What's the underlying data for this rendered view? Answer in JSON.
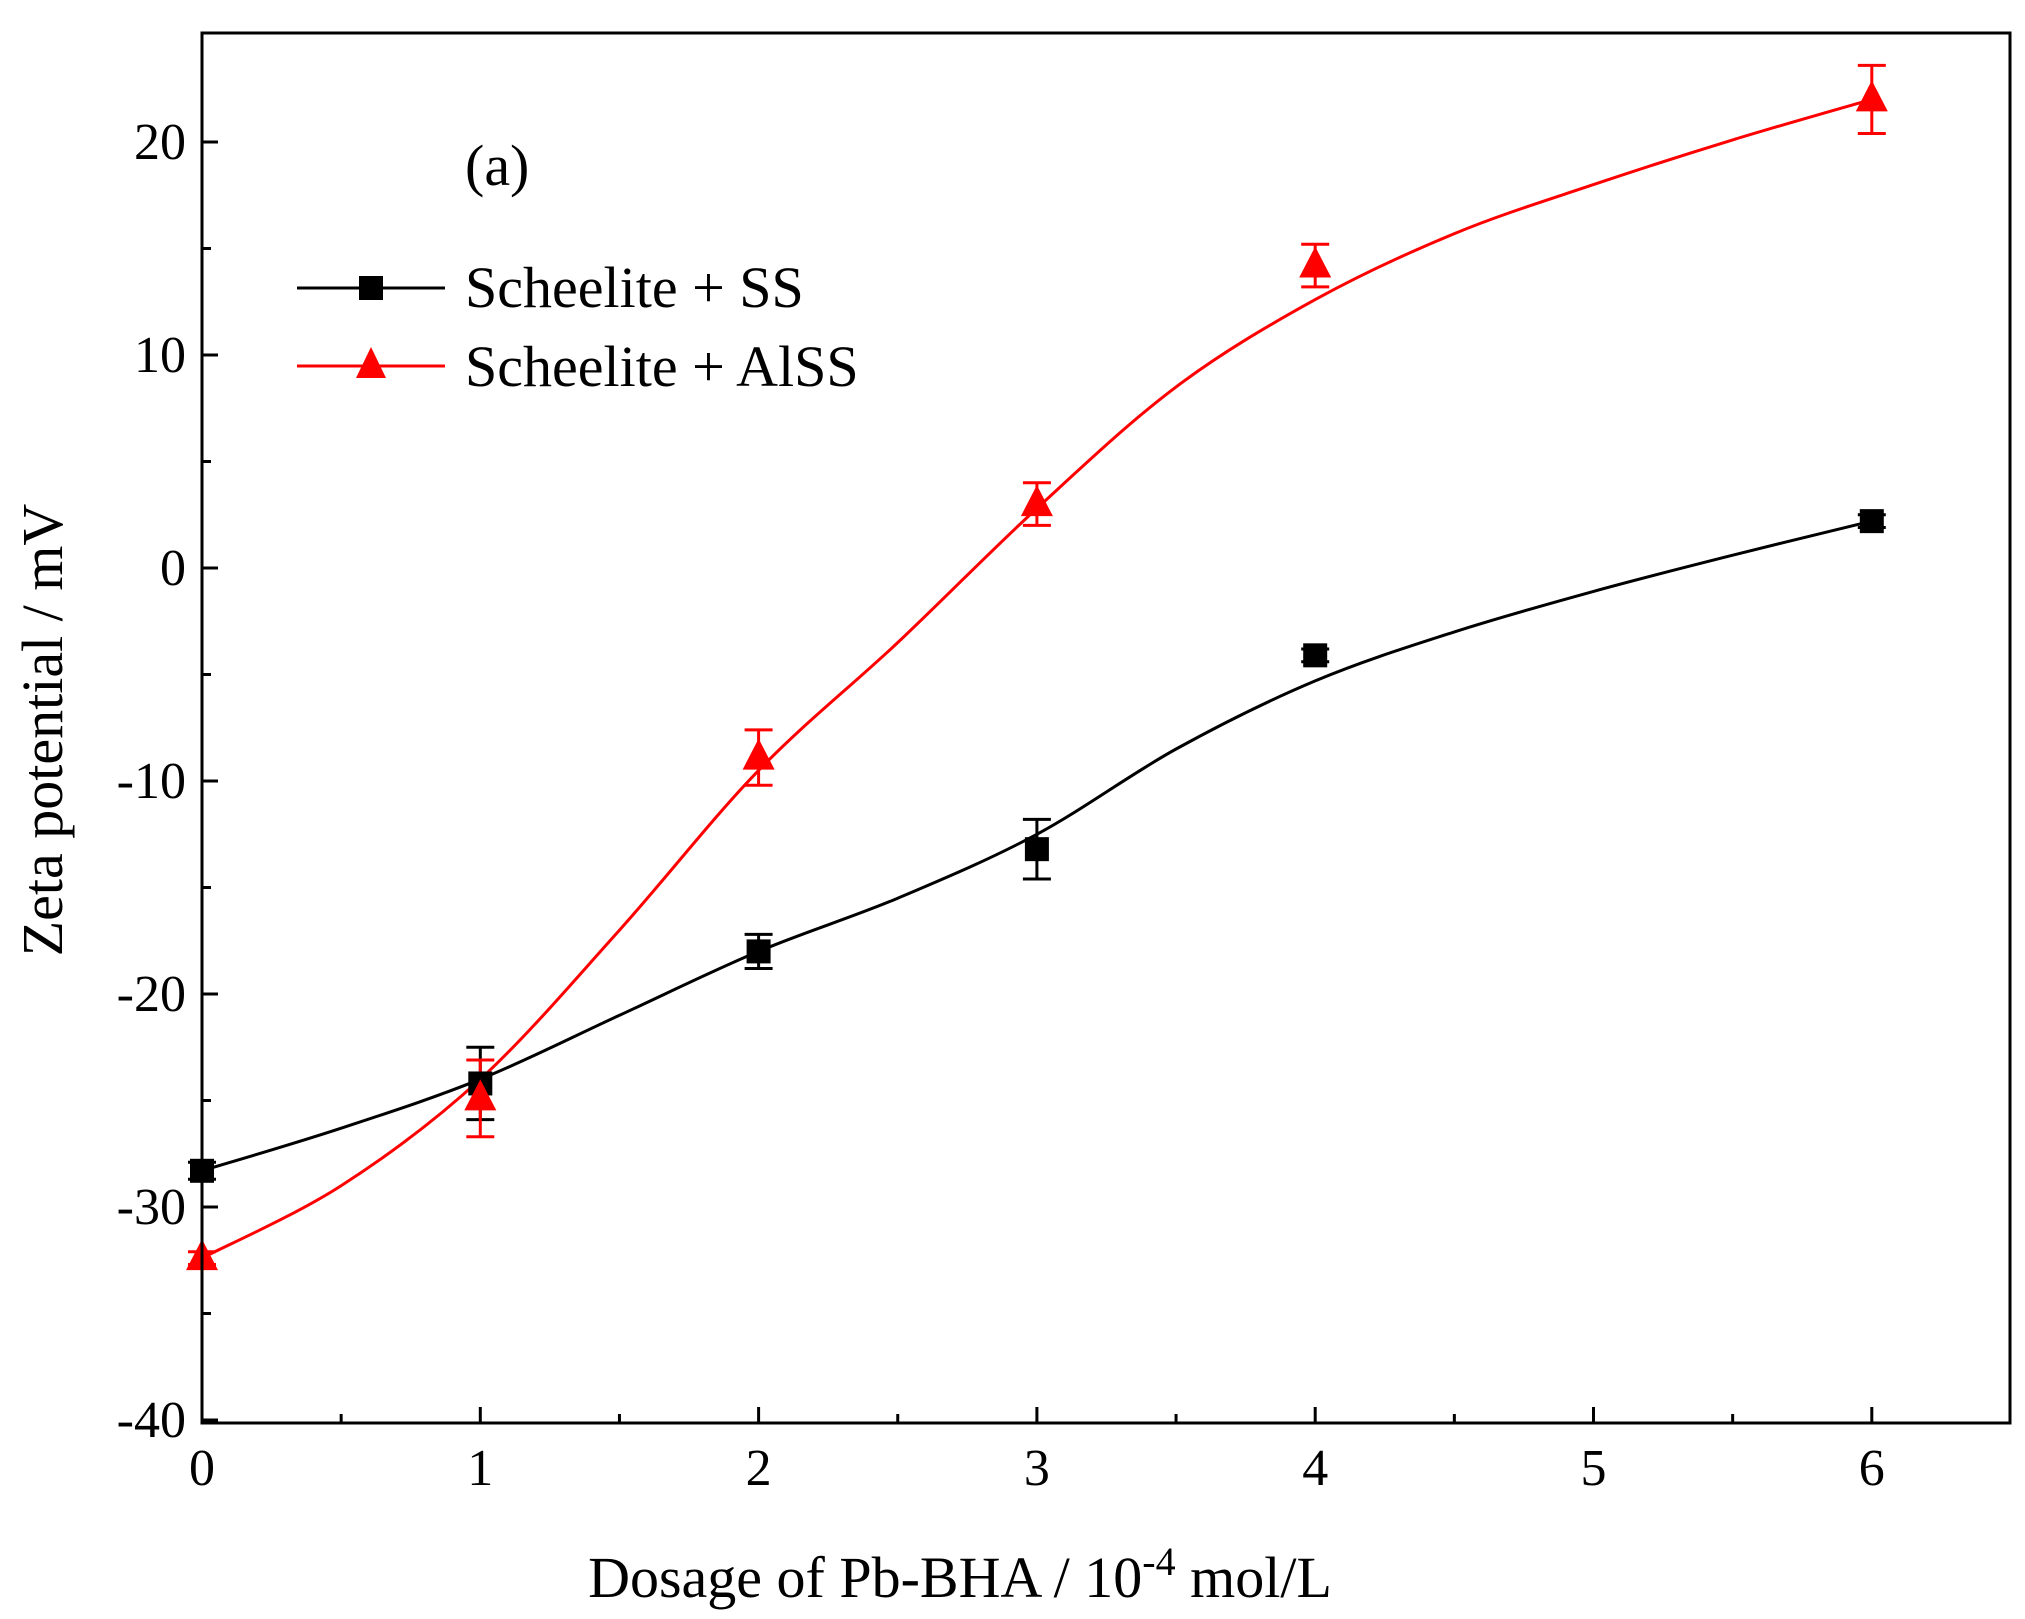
{
  "panel_label": "(a)",
  "colors": {
    "ss": "#000000",
    "alss": "#ff0000",
    "axis": "#000000"
  },
  "chart_data": {
    "type": "line",
    "title": "",
    "xlabel": "Dosage of Pb-BHA / 10",
    "xlabel_sup": "-4",
    "xlabel_tail": " mol/L",
    "ylabel": "Zeta potential / mV",
    "xlim": [
      0,
      6.5
    ],
    "ylim": [
      -40,
      25
    ],
    "xticks": [
      0,
      1,
      2,
      3,
      4,
      5,
      6
    ],
    "xticks_minor": [
      0.5,
      1.5,
      2.5,
      3.5,
      4.5,
      5.5
    ],
    "xtick_labels": [
      "0",
      "1",
      "2",
      "3",
      "4",
      "5",
      "6"
    ],
    "yticks": [
      -40,
      -30,
      -20,
      -10,
      0,
      10,
      20
    ],
    "yticks_minor": [
      -35,
      -25,
      -15,
      -5,
      5,
      15
    ],
    "ytick_labels": [
      "-40",
      "-30",
      "-20",
      "-10",
      "0",
      "10",
      "20"
    ],
    "legend_position": "top-left",
    "series": [
      {
        "name": "Scheelite + SS",
        "marker": "square",
        "color": "#000000",
        "x": [
          0,
          1,
          2,
          3,
          4,
          6
        ],
        "y": [
          -28.3,
          -24.2,
          -18.0,
          -13.2,
          -4.1,
          2.2
        ],
        "err": [
          0.4,
          1.7,
          0.8,
          1.4,
          0.3,
          0.3
        ],
        "fit_x": [
          0,
          0.5,
          1,
          1.5,
          2,
          2.5,
          3,
          3.5,
          4,
          4.5,
          5,
          5.5,
          6
        ],
        "fit_y": [
          -28.3,
          -26.3,
          -24.0,
          -21.0,
          -18.0,
          -15.5,
          -12.5,
          -8.5,
          -5.3,
          -3.0,
          -1.1,
          0.6,
          2.2
        ]
      },
      {
        "name": "Scheelite + AlSS",
        "marker": "triangle",
        "color": "#ff0000",
        "x": [
          0,
          1,
          2,
          3,
          4,
          6
        ],
        "y": [
          -32.4,
          -24.9,
          -8.9,
          3.0,
          14.2,
          22.0
        ],
        "err": [
          0.3,
          1.8,
          1.3,
          1.0,
          1.0,
          1.6
        ],
        "fit_x": [
          0,
          0.5,
          1,
          1.5,
          2,
          2.5,
          3,
          3.5,
          4,
          4.5,
          5,
          5.5,
          6
        ],
        "fit_y": [
          -32.4,
          -29.0,
          -24.0,
          -17.0,
          -9.5,
          -3.5,
          2.8,
          8.5,
          12.6,
          15.7,
          18.0,
          20.1,
          22.0
        ]
      }
    ]
  }
}
